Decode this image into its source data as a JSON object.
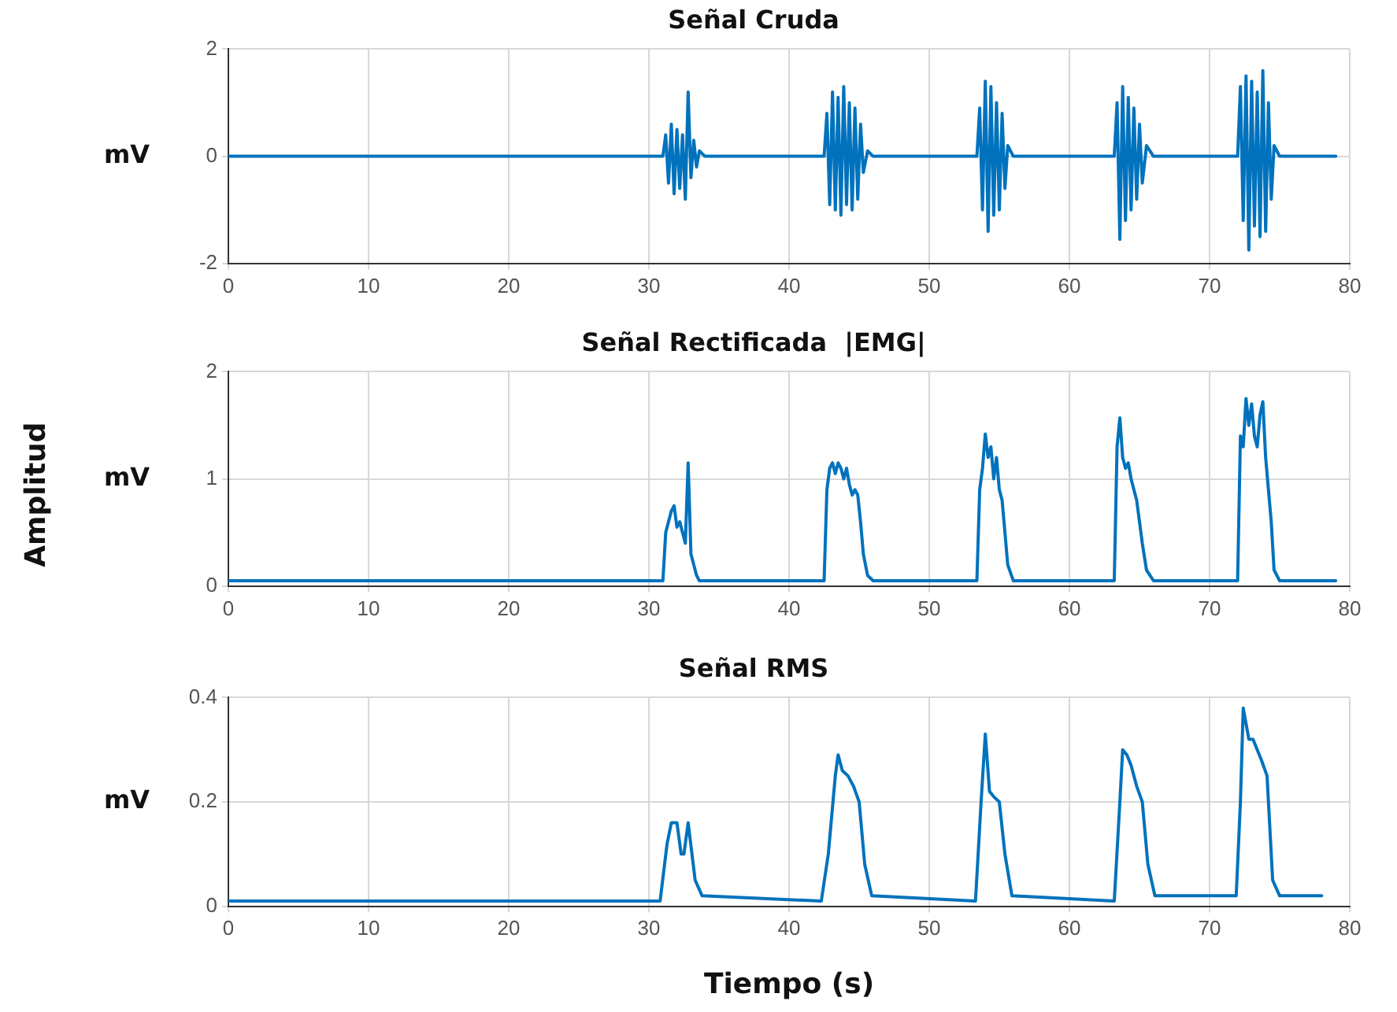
{
  "chart_data": [
    {
      "type": "line",
      "title": "Señal Cruda",
      "ylabel": "mV",
      "xlim": [
        0,
        80
      ],
      "xticks": [
        0,
        10,
        20,
        30,
        40,
        50,
        60,
        70,
        80
      ],
      "ylim": [
        -2,
        2
      ],
      "yticks": [
        -2,
        0,
        2
      ],
      "grid": true,
      "legend": false,
      "marker": "none",
      "line_style": "solid",
      "x": [
        0,
        31,
        31.2,
        31.4,
        31.6,
        31.8,
        32,
        32.2,
        32.4,
        32.6,
        32.8,
        33,
        33.2,
        33.4,
        33.6,
        34,
        42.5,
        42.7,
        42.9,
        43.1,
        43.3,
        43.5,
        43.7,
        43.9,
        44.1,
        44.3,
        44.5,
        44.7,
        44.9,
        45.1,
        45.3,
        45.6,
        46,
        53.4,
        53.6,
        53.8,
        54,
        54.2,
        54.4,
        54.6,
        54.8,
        55,
        55.2,
        55.4,
        55.6,
        56,
        63.2,
        63.4,
        63.6,
        63.8,
        64,
        64.2,
        64.4,
        64.6,
        64.8,
        65,
        65.2,
        65.5,
        66,
        72,
        72.2,
        72.4,
        72.6,
        72.8,
        73,
        73.2,
        73.4,
        73.6,
        73.8,
        74,
        74.2,
        74.4,
        74.6,
        75,
        79
      ],
      "series": [
        {
          "color": "#0072bd",
          "values": [
            0,
            0,
            0.4,
            -0.5,
            0.6,
            -0.7,
            0.5,
            -0.6,
            0.4,
            -0.8,
            1.2,
            -0.4,
            0.3,
            -0.2,
            0.1,
            0,
            0,
            0.8,
            -0.9,
            1.2,
            -1.0,
            1.1,
            -1.1,
            1.3,
            -0.9,
            1.0,
            -1.0,
            0.9,
            -0.8,
            0.6,
            -0.3,
            0.1,
            0,
            0,
            0.9,
            -1.0,
            1.4,
            -1.4,
            1.3,
            -1.1,
            1.0,
            -1.0,
            0.8,
            -0.6,
            0.2,
            0,
            0,
            1.0,
            -1.55,
            1.3,
            -1.2,
            1.1,
            -1.0,
            0.9,
            -0.8,
            0.6,
            -0.5,
            0.2,
            0,
            0,
            1.3,
            -1.2,
            1.5,
            -1.75,
            1.4,
            -1.3,
            1.2,
            -1.5,
            1.6,
            -1.4,
            1.0,
            -0.8,
            0.2,
            0,
            0
          ]
        }
      ]
    },
    {
      "type": "line",
      "title": "Señal Rectificada  |EMG|",
      "ylabel": "mV",
      "annotations": [
        "Amplitud"
      ],
      "xlim": [
        0,
        80
      ],
      "xticks": [
        0,
        10,
        20,
        30,
        40,
        50,
        60,
        70,
        80
      ],
      "ylim": [
        0,
        2
      ],
      "yticks": [
        0,
        1,
        2
      ],
      "grid": true,
      "legend": false,
      "marker": "none",
      "line_style": "solid",
      "x": [
        0,
        31,
        31.2,
        31.4,
        31.6,
        31.8,
        32,
        32.2,
        32.4,
        32.6,
        32.8,
        33,
        33.2,
        33.4,
        33.6,
        34,
        42.5,
        42.7,
        42.9,
        43.1,
        43.3,
        43.5,
        43.7,
        43.9,
        44.1,
        44.3,
        44.5,
        44.7,
        44.9,
        45.1,
        45.3,
        45.6,
        46,
        53.4,
        53.6,
        53.8,
        54,
        54.2,
        54.4,
        54.6,
        54.8,
        55,
        55.2,
        55.4,
        55.6,
        56,
        63.2,
        63.4,
        63.6,
        63.8,
        64,
        64.2,
        64.4,
        64.6,
        64.8,
        65,
        65.2,
        65.5,
        66,
        72,
        72.2,
        72.4,
        72.6,
        72.8,
        73,
        73.2,
        73.4,
        73.6,
        73.8,
        74,
        74.2,
        74.4,
        74.6,
        75,
        79
      ],
      "series": [
        {
          "color": "#0072bd",
          "values": [
            0.05,
            0.05,
            0.5,
            0.6,
            0.7,
            0.75,
            0.55,
            0.6,
            0.5,
            0.4,
            1.15,
            0.3,
            0.2,
            0.1,
            0.05,
            0.05,
            0.05,
            0.9,
            1.1,
            1.15,
            1.05,
            1.15,
            1.1,
            1.0,
            1.1,
            0.95,
            0.85,
            0.9,
            0.85,
            0.6,
            0.3,
            0.1,
            0.05,
            0.05,
            0.9,
            1.1,
            1.42,
            1.2,
            1.3,
            1.0,
            1.2,
            0.9,
            0.8,
            0.5,
            0.2,
            0.05,
            0.05,
            1.3,
            1.57,
            1.2,
            1.1,
            1.15,
            1.0,
            0.9,
            0.8,
            0.6,
            0.4,
            0.15,
            0.05,
            0.05,
            1.4,
            1.3,
            1.75,
            1.5,
            1.7,
            1.4,
            1.3,
            1.6,
            1.72,
            1.2,
            0.9,
            0.6,
            0.15,
            0.05,
            0.05
          ]
        }
      ]
    },
    {
      "type": "line",
      "title": "Señal RMS",
      "ylabel": "mV",
      "xlabel": "Tiempo (s)",
      "xlim": [
        0,
        80
      ],
      "xticks": [
        0,
        10,
        20,
        30,
        40,
        50,
        60,
        70,
        80
      ],
      "ylim": [
        0,
        0.4
      ],
      "yticks": [
        0,
        0.2,
        0.4
      ],
      "grid": true,
      "legend": false,
      "marker": "none",
      "line_style": "solid",
      "x": [
        0,
        30.8,
        31.3,
        31.6,
        32,
        32.3,
        32.5,
        32.8,
        33.3,
        33.8,
        42.3,
        42.8,
        43.3,
        43.5,
        43.8,
        44.2,
        44.6,
        45,
        45.4,
        45.9,
        53.3,
        53.7,
        54,
        54.3,
        54.6,
        55,
        55.4,
        55.9,
        63.2,
        63.6,
        63.8,
        64.1,
        64.4,
        64.8,
        65.2,
        65.6,
        66.1,
        71.9,
        72.2,
        72.4,
        72.8,
        73.1,
        73.4,
        73.7,
        74.1,
        74.5,
        75,
        78
      ],
      "series": [
        {
          "color": "#0072bd",
          "values": [
            0.01,
            0.01,
            0.12,
            0.16,
            0.16,
            0.1,
            0.1,
            0.16,
            0.05,
            0.02,
            0.01,
            0.1,
            0.25,
            0.29,
            0.26,
            0.25,
            0.23,
            0.2,
            0.08,
            0.02,
            0.01,
            0.2,
            0.33,
            0.22,
            0.21,
            0.2,
            0.1,
            0.02,
            0.01,
            0.2,
            0.3,
            0.29,
            0.27,
            0.23,
            0.2,
            0.08,
            0.02,
            0.02,
            0.2,
            0.38,
            0.32,
            0.32,
            0.3,
            0.28,
            0.25,
            0.05,
            0.02,
            0.02
          ]
        }
      ]
    }
  ]
}
